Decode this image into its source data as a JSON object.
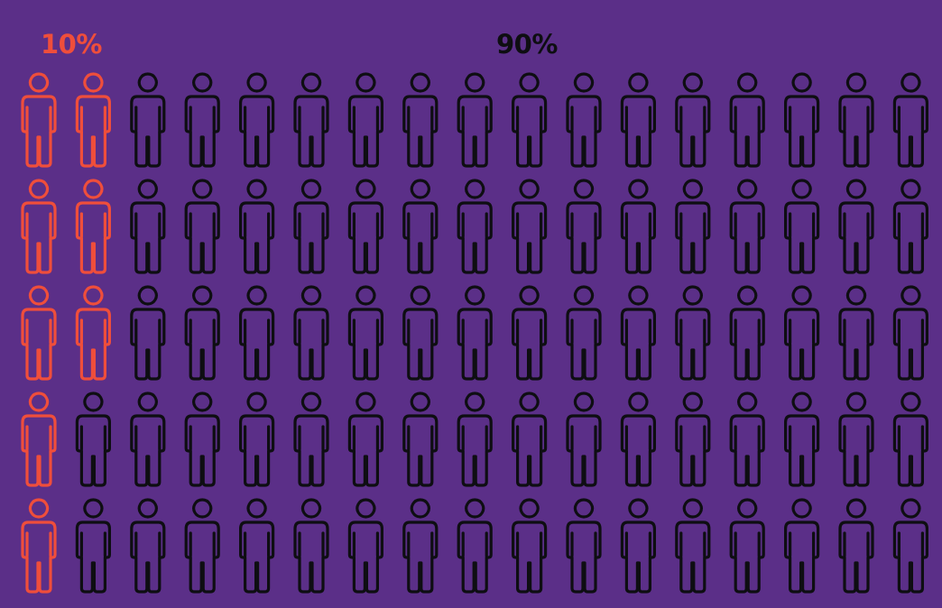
{
  "chart_data": {
    "type": "pictogram",
    "total": 85,
    "rows": 5,
    "columns": 17,
    "groups": [
      {
        "label": "10%",
        "percent": 10,
        "count": 8,
        "color": "#ef4e3b"
      },
      {
        "label": "90%",
        "percent": 90,
        "count": 77,
        "color": "#0e0e12"
      }
    ],
    "fill_order": "column-major",
    "icon": "person-outline-icon",
    "background": "#5b2f88"
  }
}
